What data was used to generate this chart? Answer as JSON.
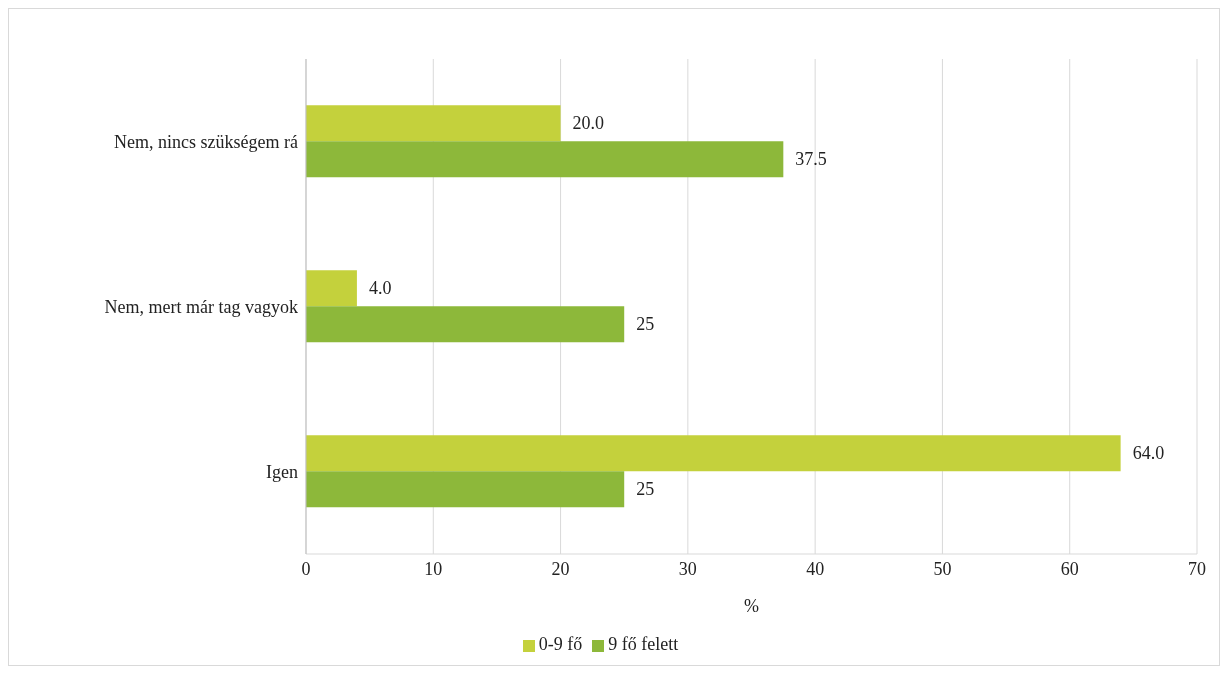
{
  "chart_data": {
    "type": "bar",
    "orientation": "horizontal",
    "xlabel": "%",
    "categories": [
      "Nem, nincs szükségem rá",
      "Nem, mert már tag vagyok",
      "Igen"
    ],
    "series": [
      {
        "name": "0-9 fő",
        "color": "#c4d13c",
        "values": [
          20,
          4,
          64
        ],
        "value_labels": [
          "20.0",
          "4.0",
          "64.0"
        ]
      },
      {
        "name": "9 fő felett",
        "color": "#8db83a",
        "values": [
          37.5,
          25,
          25
        ],
        "value_labels": [
          "37.5",
          "25",
          "25"
        ]
      }
    ],
    "xlim": [
      0,
      70
    ],
    "xticks": [
      0,
      10,
      20,
      30,
      40,
      50,
      60,
      70
    ],
    "grid": "x",
    "legend": "bottom"
  }
}
